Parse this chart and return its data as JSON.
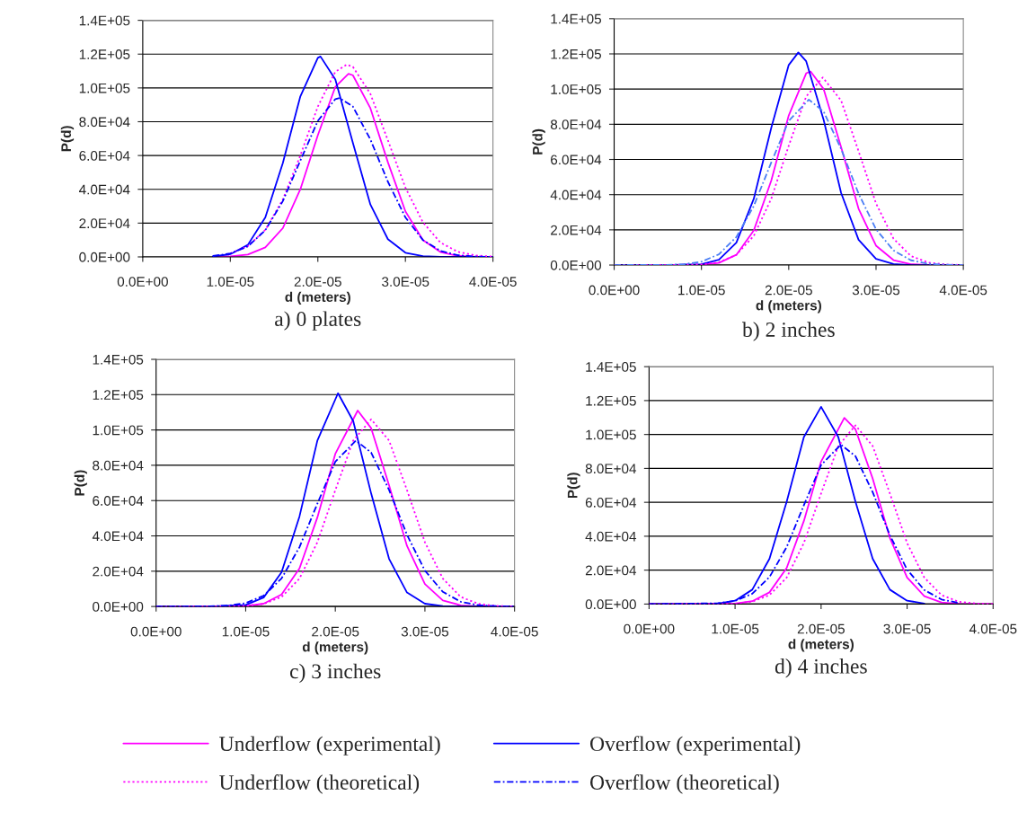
{
  "chart_data": [
    {
      "type": "line",
      "title": "a) 0 plates",
      "xlabel": "d (meters)",
      "ylabel": "P(d)",
      "grid": "y",
      "xlim": [
        0,
        4e-05
      ],
      "ylim": [
        0,
        140000
      ],
      "xticks": [
        {
          "value": 0,
          "label": "0.0E+00"
        },
        {
          "value": 1e-05,
          "label": "1.0E-05"
        },
        {
          "value": 2e-05,
          "label": "2.0E-05"
        },
        {
          "value": 3e-05,
          "label": "3.0E-05"
        },
        {
          "value": 4e-05,
          "label": "4.0E-05"
        }
      ],
      "yticks": [
        {
          "value": 0,
          "label": "0.0E+00"
        },
        {
          "value": 20000,
          "label": "2.0E+04"
        },
        {
          "value": 40000,
          "label": "4.0E+04"
        },
        {
          "value": 60000,
          "label": "6.0E+04"
        },
        {
          "value": 80000,
          "label": "8.0E+04"
        },
        {
          "value": 100000,
          "label": "1.0E+05"
        },
        {
          "value": 120000,
          "label": "1.2E+05"
        },
        {
          "value": 140000,
          "label": "1.4E+05"
        }
      ],
      "series": [
        {
          "color": "#ff00ff",
          "line_style": "solid",
          "x": [
            8e-06,
            1e-05,
            1.2e-05,
            1.4e-05,
            1.6e-05,
            1.8e-05,
            2e-05,
            2.2e-05,
            2.35e-05,
            2.4e-05,
            2.6e-05,
            2.8e-05,
            3e-05,
            3.2e-05,
            3.4e-05,
            3.6e-05,
            3.8e-05,
            4e-05
          ],
          "values": [
            0,
            270,
            1400,
            5600,
            17000,
            40000,
            72000,
            100700,
            108400,
            107500,
            88000,
            56000,
            27000,
            10000,
            2900,
            640,
            100,
            0
          ]
        },
        {
          "color": "#ff00ff",
          "line_style": "dotted",
          "x": [
            1e-05,
            1.2e-05,
            1.4e-05,
            1.6e-05,
            1.8e-05,
            2e-05,
            2.2e-05,
            2.33e-05,
            2.4e-05,
            2.6e-05,
            2.8e-05,
            3e-05,
            3.2e-05,
            3.4e-05,
            3.6e-05,
            3.8e-05,
            4e-05
          ],
          "values": [
            2100,
            6300,
            16000,
            34000,
            60000,
            89000,
            109600,
            113800,
            112500,
            96500,
            69000,
            41000,
            20500,
            8500,
            3000,
            850,
            200
          ]
        },
        {
          "color": "#0000ff",
          "line_style": "solid",
          "x": [
            8e-06,
            1e-05,
            1.2e-05,
            1.4e-05,
            1.6e-05,
            1.8e-05,
            2e-05,
            2.03e-05,
            2.2e-05,
            2.4e-05,
            2.6e-05,
            2.8e-05,
            3e-05,
            3.2e-05,
            3.4e-05,
            3.6e-05,
            3.8e-05,
            4e-05
          ],
          "values": [
            250,
            1600,
            7100,
            23400,
            55500,
            95000,
            117800,
            118600,
            105000,
            67500,
            31000,
            10500,
            2500,
            440,
            0,
            0,
            0,
            0
          ]
        },
        {
          "color": "#0000ff",
          "line_style": "dashdot",
          "x": [
            8e-06,
            1e-05,
            1.2e-05,
            1.4e-05,
            1.6e-05,
            1.8e-05,
            2e-05,
            2.2e-05,
            2.25e-05,
            2.4e-05,
            2.6e-05,
            2.8e-05,
            3e-05,
            3.2e-05,
            3.4e-05,
            3.6e-05,
            3.8e-05,
            4e-05
          ],
          "values": [
            525,
            2000,
            6200,
            15800,
            33000,
            57000,
            80500,
            93400,
            94000,
            89000,
            69500,
            44500,
            23400,
            10000,
            3600,
            1000,
            250,
            0
          ]
        }
      ]
    },
    {
      "type": "line",
      "title": "b) 2 inches",
      "xlabel": "d (meters)",
      "ylabel": "P(d)",
      "grid": "y",
      "xlim": [
        0,
        4e-05
      ],
      "ylim": [
        0,
        140000
      ],
      "xticks": [
        {
          "value": 0,
          "label": "0.0E+00"
        },
        {
          "value": 1e-05,
          "label": "1.0E-05"
        },
        {
          "value": 2e-05,
          "label": "2.0E-05"
        },
        {
          "value": 3e-05,
          "label": "3.0E-05"
        },
        {
          "value": 4e-05,
          "label": "4.0E-05"
        }
      ],
      "yticks": [
        {
          "value": 0,
          "label": "0.0E+00"
        },
        {
          "value": 20000,
          "label": "2.0E+04"
        },
        {
          "value": 40000,
          "label": "4.0E+04"
        },
        {
          "value": 60000,
          "label": "6.0E+04"
        },
        {
          "value": 80000,
          "label": "8.0E+04"
        },
        {
          "value": 100000,
          "label": "1.0E+05"
        },
        {
          "value": 120000,
          "label": "1.2E+05"
        },
        {
          "value": 140000,
          "label": "1.4E+05"
        }
      ],
      "series": [
        {
          "color": "#ff00ff",
          "line_style": "solid",
          "x": [
            0,
            6e-06,
            1e-05,
            1.2e-05,
            1.4e-05,
            1.6e-05,
            1.8e-05,
            2e-05,
            2.2e-05,
            2.25e-05,
            2.4e-05,
            2.6e-05,
            2.8e-05,
            3e-05,
            3.2e-05,
            3.4e-05,
            3.6e-05,
            4e-05
          ],
          "values": [
            0,
            0,
            190,
            1200,
            5800,
            19700,
            48000,
            85000,
            109000,
            110000,
            100000,
            67000,
            32000,
            11000,
            2800,
            500,
            60,
            0
          ]
        },
        {
          "color": "#ff00ff",
          "line_style": "dotted",
          "x": [
            0,
            6e-06,
            1e-05,
            1.2e-05,
            1.4e-05,
            1.6e-05,
            1.8e-05,
            2e-05,
            2.2e-05,
            2.39e-05,
            2.6e-05,
            2.8e-05,
            3e-05,
            3.2e-05,
            3.4e-05,
            3.6e-05,
            3.8e-05,
            4e-05
          ],
          "values": [
            0,
            0,
            340,
            1600,
            5800,
            16600,
            37700,
            67800,
            95800,
            106600,
            93500,
            64700,
            35000,
            15000,
            5100,
            1400,
            290,
            50
          ]
        },
        {
          "color": "#0000ff",
          "line_style": "solid",
          "x": [
            0,
            6e-06,
            1e-05,
            1.2e-05,
            1.4e-05,
            1.6e-05,
            1.8e-05,
            2e-05,
            2.11e-05,
            2.2e-05,
            2.4e-05,
            2.6e-05,
            2.8e-05,
            3e-05,
            3.2e-05,
            3.4e-05,
            3.6e-05,
            4e-05
          ],
          "values": [
            0,
            0,
            500,
            3000,
            12700,
            37700,
            78000,
            113700,
            120800,
            115800,
            82500,
            41000,
            14400,
            3500,
            600,
            0,
            0,
            0
          ]
        },
        {
          "color": "#4a7ef5",
          "line_style": "dashdot",
          "x": [
            0,
            6e-06,
            8e-06,
            1e-05,
            1.2e-05,
            1.4e-05,
            1.6e-05,
            1.8e-05,
            2e-05,
            2.23e-05,
            2.4e-05,
            2.6e-05,
            2.8e-05,
            3e-05,
            3.2e-05,
            3.4e-05,
            3.6e-05,
            3.8e-05,
            4e-05
          ],
          "values": [
            0,
            100,
            480,
            1900,
            6100,
            15900,
            33600,
            58300,
            82000,
            94000,
            87200,
            66000,
            40600,
            20300,
            8300,
            2700,
            730,
            170,
            0
          ]
        }
      ]
    },
    {
      "type": "line",
      "title": "c) 3 inches",
      "xlabel": "d (meters)",
      "ylabel": "P(d)",
      "grid": "y",
      "xlim": [
        0,
        4e-05
      ],
      "ylim": [
        0,
        140000
      ],
      "xticks": [
        {
          "value": 0,
          "label": "0.0E+00"
        },
        {
          "value": 1e-05,
          "label": "1.0E-05"
        },
        {
          "value": 2e-05,
          "label": "2.0E-05"
        },
        {
          "value": 3e-05,
          "label": "3.0E-05"
        },
        {
          "value": 4e-05,
          "label": "4.0E-05"
        }
      ],
      "yticks": [
        {
          "value": 0,
          "label": "0.0E+00"
        },
        {
          "value": 20000,
          "label": "2.0E+04"
        },
        {
          "value": 40000,
          "label": "4.0E+04"
        },
        {
          "value": 60000,
          "label": "6.0E+04"
        },
        {
          "value": 80000,
          "label": "8.0E+04"
        },
        {
          "value": 100000,
          "label": "1.0E+05"
        },
        {
          "value": 120000,
          "label": "1.2E+05"
        },
        {
          "value": 140000,
          "label": "1.4E+05"
        }
      ],
      "series": [
        {
          "color": "#ff00ff",
          "line_style": "solid",
          "x": [
            0,
            6e-06,
            1e-05,
            1.2e-05,
            1.4e-05,
            1.6e-05,
            1.8e-05,
            2e-05,
            2.25e-05,
            2.4e-05,
            2.6e-05,
            2.8e-05,
            3e-05,
            3.2e-05,
            3.4e-05,
            3.6e-05,
            4e-05
          ],
          "values": [
            0,
            0,
            275,
            1600,
            6800,
            21600,
            50500,
            86500,
            111000,
            101000,
            68600,
            34300,
            12700,
            3400,
            680,
            100,
            0
          ]
        },
        {
          "color": "#ff00ff",
          "line_style": "dotted",
          "x": [
            0,
            6e-06,
            1e-05,
            1.2e-05,
            1.4e-05,
            1.6e-05,
            1.8e-05,
            2e-05,
            2.2e-05,
            2.4e-05,
            2.6e-05,
            2.8e-05,
            3e-05,
            3.2e-05,
            3.4e-05,
            3.6e-05,
            3.8e-05,
            4e-05
          ],
          "values": [
            0,
            0,
            310,
            1500,
            5400,
            15800,
            36400,
            65900,
            94000,
            106000,
            94000,
            65900,
            36400,
            15800,
            5400,
            1500,
            310,
            40
          ]
        },
        {
          "color": "#0000ff",
          "line_style": "solid",
          "x": [
            0,
            6e-06,
            1e-05,
            1.2e-05,
            1.4e-05,
            1.6e-05,
            1.8e-05,
            2.03e-05,
            2.2e-05,
            2.4e-05,
            2.6e-05,
            2.8e-05,
            3e-05,
            3.2e-05,
            3.4e-05,
            4e-05
          ],
          "values": [
            0,
            0,
            920,
            5100,
            19400,
            51000,
            94000,
            120800,
            105000,
            64000,
            27000,
            7900,
            1600,
            225,
            0,
            0
          ]
        },
        {
          "color": "#0000ff",
          "line_style": "dashdot",
          "x": [
            0,
            6e-06,
            8e-06,
            1e-05,
            1.2e-05,
            1.4e-05,
            1.6e-05,
            1.8e-05,
            2e-05,
            2.23e-05,
            2.4e-05,
            2.6e-05,
            2.8e-05,
            3e-05,
            3.2e-05,
            3.4e-05,
            3.6e-05,
            3.8e-05,
            4e-05
          ],
          "values": [
            0,
            100,
            480,
            1900,
            6100,
            15900,
            33600,
            58300,
            82000,
            94000,
            87200,
            66000,
            40600,
            20300,
            8300,
            2700,
            730,
            170,
            0
          ]
        }
      ]
    },
    {
      "type": "line",
      "title": "d) 4 inches",
      "xlabel": "d (meters)",
      "ylabel": "P(d)",
      "grid": "y",
      "legend": "bottom",
      "xlim": [
        0,
        4e-05
      ],
      "ylim": [
        0,
        140000
      ],
      "xticks": [
        {
          "value": 0,
          "label": "0.0E+00"
        },
        {
          "value": 1e-05,
          "label": "1.0E-05"
        },
        {
          "value": 2e-05,
          "label": "2.0E-05"
        },
        {
          "value": 3e-05,
          "label": "3.0E-05"
        },
        {
          "value": 4e-05,
          "label": "4.0E-05"
        }
      ],
      "yticks": [
        {
          "value": 0,
          "label": "0.0E+00"
        },
        {
          "value": 20000,
          "label": "2.0E+04"
        },
        {
          "value": 40000,
          "label": "4.0E+04"
        },
        {
          "value": 60000,
          "label": "6.0E+04"
        },
        {
          "value": 80000,
          "label": "8.0E+04"
        },
        {
          "value": 100000,
          "label": "1.0E+05"
        },
        {
          "value": 120000,
          "label": "1.2E+05"
        },
        {
          "value": 140000,
          "label": "1.4E+05"
        }
      ],
      "series": [
        {
          "name": "Underflow (experimental)",
          "color": "#ff00ff",
          "line_style": "solid",
          "x": [
            0,
            6e-06,
            1e-05,
            1.2e-05,
            1.4e-05,
            1.6e-05,
            1.8e-05,
            2e-05,
            2.27e-05,
            2.4e-05,
            2.6e-05,
            2.8e-05,
            3e-05,
            3.2e-05,
            3.4e-05,
            3.6e-05,
            3.8e-05,
            4e-05
          ],
          "values": [
            0,
            0,
            300,
            1700,
            6900,
            21300,
            49000,
            84000,
            109800,
            103000,
            74000,
            39000,
            15700,
            4700,
            1000,
            170,
            0,
            0
          ]
        },
        {
          "name": "Underflow (theoretical)",
          "color": "#ff00ff",
          "line_style": "dotted",
          "x": [
            0,
            6e-06,
            1e-05,
            1.2e-05,
            1.4e-05,
            1.6e-05,
            1.8e-05,
            2e-05,
            2.2e-05,
            2.4e-05,
            2.6e-05,
            2.8e-05,
            3e-05,
            3.2e-05,
            3.4e-05,
            3.6e-05,
            3.8e-05,
            4e-05
          ],
          "values": [
            0,
            0,
            300,
            1400,
            5300,
            15600,
            36000,
            65200,
            93200,
            105400,
            93200,
            65200,
            36000,
            15600,
            5300,
            1400,
            300,
            40
          ]
        },
        {
          "name": "Overflow (experimental)",
          "color": "#0000ff",
          "line_style": "solid",
          "x": [
            0,
            6e-06,
            8e-06,
            1e-05,
            1.2e-05,
            1.4e-05,
            1.6e-05,
            1.8e-05,
            2e-05,
            2.2e-05,
            2.4e-05,
            2.6e-05,
            2.8e-05,
            3e-05,
            3.2e-05
          ],
          "values": [
            0,
            0,
            325,
            2000,
            8500,
            26700,
            60400,
            98500,
            116300,
            98500,
            60400,
            26700,
            8500,
            2000,
            325
          ]
        },
        {
          "name": "Overflow (theoretical)",
          "color": "#0000ff",
          "line_style": "dashdot",
          "x": [
            0,
            8e-06,
            1e-05,
            1.2e-05,
            1.4e-05,
            1.6e-05,
            1.8e-05,
            2e-05,
            2.23e-05,
            2.4e-05,
            2.6e-05,
            2.8e-05,
            3e-05,
            3.2e-05,
            3.4e-05,
            3.6e-05
          ],
          "values": [
            0,
            480,
            1900,
            6100,
            15900,
            33600,
            58300,
            82000,
            94000,
            87200,
            66000,
            40600,
            20300,
            8300,
            2700,
            730
          ]
        }
      ]
    }
  ]
}
